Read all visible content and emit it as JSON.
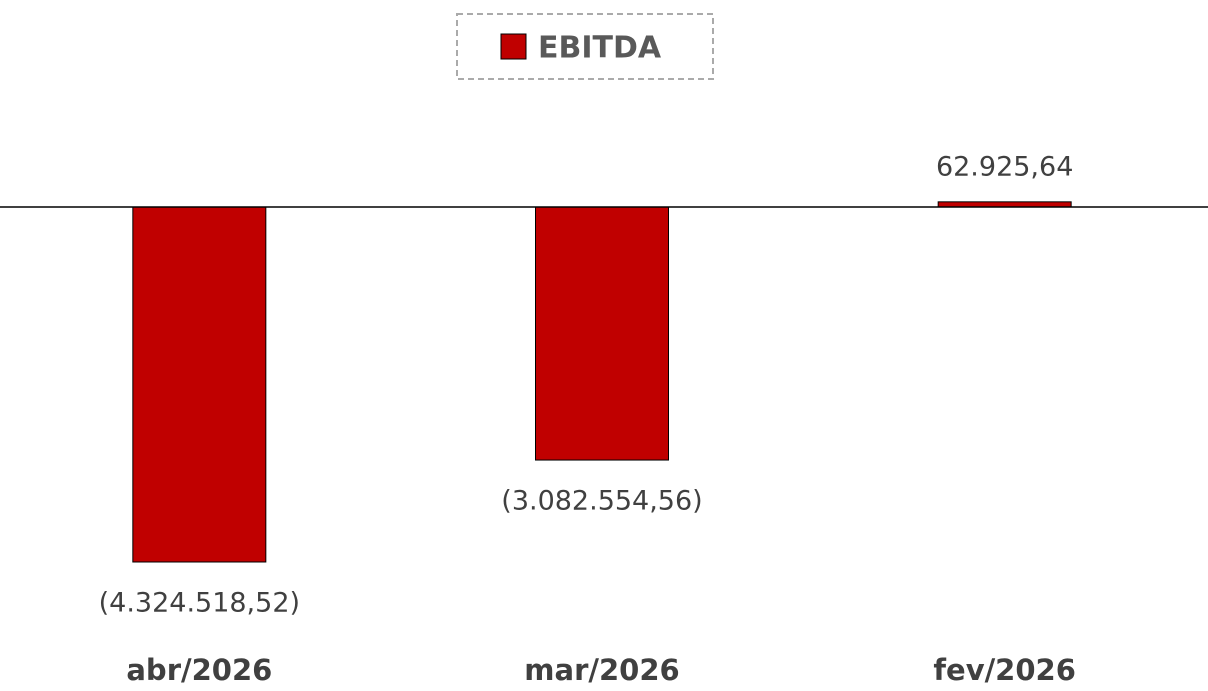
{
  "chart_data": {
    "type": "bar",
    "categories": [
      "abr/2026",
      "mar/2026",
      "fev/2026"
    ],
    "series": [
      {
        "name": "EBITDA",
        "color": "#c00000",
        "values": [
          -4324518.52,
          -3082554.56,
          62925.64
        ],
        "value_labels": [
          "(4.324.518,52)",
          "(3.082.554,56)",
          "62.925,64"
        ]
      }
    ],
    "legend": "top"
  }
}
